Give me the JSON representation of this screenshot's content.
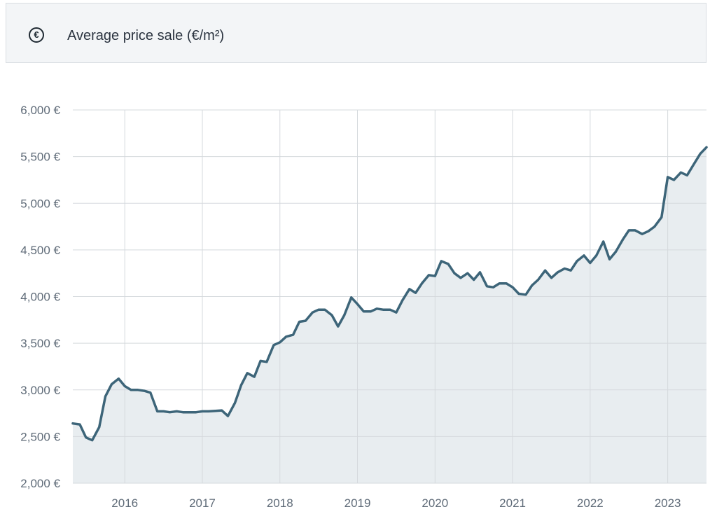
{
  "header": {
    "icon": "euro-circle-icon",
    "icon_glyph": "€",
    "title": "Average price sale (€/m²)"
  },
  "chart_data": {
    "type": "area",
    "title": "Average price sale (€/m²)",
    "xlabel": "",
    "ylabel": "",
    "y_tick_labels": [
      "2,000 €",
      "2,500 €",
      "3,000 €",
      "3,500 €",
      "4,000 €",
      "4,500 €",
      "5,000 €",
      "5,500 €",
      "6,000 €"
    ],
    "y_ticks": [
      2000,
      2500,
      3000,
      3500,
      4000,
      4500,
      5000,
      5500,
      6000
    ],
    "ylim": [
      2000,
      6000
    ],
    "x_tick_labels": [
      "2016",
      "2017",
      "2018",
      "2019",
      "2020",
      "2021",
      "2022",
      "2023"
    ],
    "x_ticks": [
      2016,
      2017,
      2018,
      2019,
      2020,
      2021,
      2022,
      2023
    ],
    "xlim": [
      2015.33,
      2023.5
    ],
    "grid": true,
    "line_color": "#3d6579",
    "fill_color": "#e8edf0",
    "series": [
      {
        "x": [
          2015.33,
          2015.42,
          2015.5,
          2015.58,
          2015.67,
          2015.75,
          2015.83,
          2015.92,
          2016.0,
          2016.08,
          2016.17,
          2016.25,
          2016.33,
          2016.42,
          2016.5,
          2016.58,
          2016.67,
          2016.75,
          2016.83,
          2016.92,
          2017.0,
          2017.08,
          2017.17,
          2017.25,
          2017.33,
          2017.42,
          2017.5,
          2017.58,
          2017.67,
          2017.75,
          2017.83,
          2017.92,
          2018.0,
          2018.08,
          2018.17,
          2018.25,
          2018.33,
          2018.42,
          2018.5,
          2018.58,
          2018.67,
          2018.75,
          2018.83,
          2018.92,
          2019.0,
          2019.08,
          2019.17,
          2019.25,
          2019.33,
          2019.42,
          2019.5,
          2019.58,
          2019.67,
          2019.75,
          2019.83,
          2019.92,
          2020.0,
          2020.08,
          2020.17,
          2020.25,
          2020.33,
          2020.42,
          2020.5,
          2020.58,
          2020.67,
          2020.75,
          2020.83,
          2020.92,
          2021.0,
          2021.08,
          2021.17,
          2021.25,
          2021.33,
          2021.42,
          2021.5,
          2021.58,
          2021.67,
          2021.75,
          2021.83,
          2021.92,
          2022.0,
          2022.08,
          2022.17,
          2022.25,
          2022.33,
          2022.42,
          2022.5,
          2022.58,
          2022.67,
          2022.75,
          2022.83,
          2022.92,
          2023.0,
          2023.08,
          2023.17,
          2023.25,
          2023.33,
          2023.42,
          2023.5
        ],
        "y": [
          2640,
          2630,
          2490,
          2460,
          2600,
          2930,
          3060,
          3120,
          3040,
          3000,
          3000,
          2990,
          2970,
          2770,
          2770,
          2760,
          2770,
          2760,
          2760,
          2760,
          2770,
          2770,
          2775,
          2780,
          2720,
          2860,
          3050,
          3180,
          3140,
          3310,
          3300,
          3480,
          3510,
          3570,
          3590,
          3730,
          3740,
          3830,
          3860,
          3860,
          3800,
          3680,
          3800,
          3990,
          3920,
          3840,
          3840,
          3870,
          3860,
          3860,
          3830,
          3960,
          4080,
          4040,
          4140,
          4230,
          4220,
          4380,
          4350,
          4250,
          4200,
          4250,
          4180,
          4260,
          4110,
          4100,
          4140,
          4140,
          4100,
          4030,
          4020,
          4120,
          4180,
          4280,
          4200,
          4260,
          4300,
          4280,
          4380,
          4440,
          4360,
          4440,
          4590,
          4400,
          4480,
          4610,
          4710,
          4710,
          4670,
          4700,
          4750,
          4850,
          5280,
          5250,
          5330,
          5300,
          5410,
          5530,
          5600
        ]
      }
    ]
  }
}
